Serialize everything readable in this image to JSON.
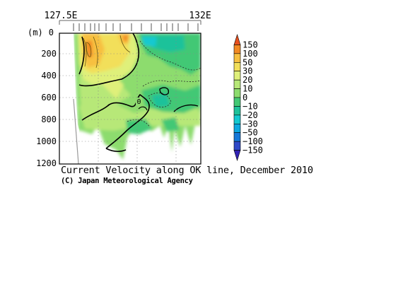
{
  "chart_data": {
    "type": "heatmap",
    "title": "Current Velocity along OK line, December 2010",
    "credit": "(C) Japan Meteorological Agency",
    "x_axis": {
      "tick_labels": [
        "127.5E",
        "132E"
      ],
      "range": [
        "127.5E",
        "132E"
      ]
    },
    "y_axis": {
      "unit_label": "(m)",
      "ticks": [
        0,
        200,
        400,
        600,
        800,
        1000,
        1200
      ],
      "range": [
        0,
        1200
      ],
      "inverted": true
    },
    "colorbar": {
      "labels": [
        "150",
        "100",
        "50",
        "30",
        "20",
        "10",
        "0",
        "−10",
        "−20",
        "−30",
        "−50",
        "−100",
        "−150"
      ],
      "colors": [
        "#e8501e",
        "#f28a24",
        "#f7c040",
        "#f2df5a",
        "#dff07a",
        "#b7e878",
        "#8ddc6e",
        "#43c874",
        "#1fc29a",
        "#14c9d0",
        "#0da8e0",
        "#1678d8",
        "#2f49c8",
        "#3222b4"
      ]
    },
    "contour_labels": [
      "0"
    ],
    "grid": true
  }
}
